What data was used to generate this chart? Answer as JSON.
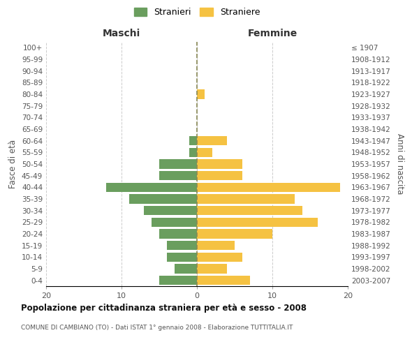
{
  "age_groups": [
    "0-4",
    "5-9",
    "10-14",
    "15-19",
    "20-24",
    "25-29",
    "30-34",
    "35-39",
    "40-44",
    "45-49",
    "50-54",
    "55-59",
    "60-64",
    "65-69",
    "70-74",
    "75-79",
    "80-84",
    "85-89",
    "90-94",
    "95-99",
    "100+"
  ],
  "birth_years": [
    "2003-2007",
    "1998-2002",
    "1993-1997",
    "1988-1992",
    "1983-1987",
    "1978-1982",
    "1973-1977",
    "1968-1972",
    "1963-1967",
    "1958-1962",
    "1953-1957",
    "1948-1952",
    "1943-1947",
    "1938-1942",
    "1933-1937",
    "1928-1932",
    "1923-1927",
    "1918-1922",
    "1913-1917",
    "1908-1912",
    "≤ 1907"
  ],
  "males": [
    5,
    3,
    4,
    4,
    5,
    6,
    7,
    9,
    12,
    5,
    5,
    1,
    1,
    0,
    0,
    0,
    0,
    0,
    0,
    0,
    0
  ],
  "females": [
    7,
    4,
    6,
    5,
    10,
    16,
    14,
    13,
    19,
    6,
    6,
    2,
    4,
    0,
    0,
    0,
    1,
    0,
    0,
    0,
    0
  ],
  "male_color": "#6a9e5e",
  "female_color": "#f5c242",
  "background_color": "#ffffff",
  "grid_color": "#cccccc",
  "center_line_color": "#888855",
  "title": "Popolazione per cittadinanza straniera per età e sesso - 2008",
  "subtitle": "COMUNE DI CAMBIANO (TO) - Dati ISTAT 1° gennaio 2008 - Elaborazione TUTTITALIA.IT",
  "xlabel_left": "Maschi",
  "xlabel_right": "Femmine",
  "ylabel_left": "Fasce di età",
  "ylabel_right": "Anni di nascita",
  "legend_male": "Stranieri",
  "legend_female": "Straniere",
  "xlim": 20,
  "bar_height": 0.8
}
